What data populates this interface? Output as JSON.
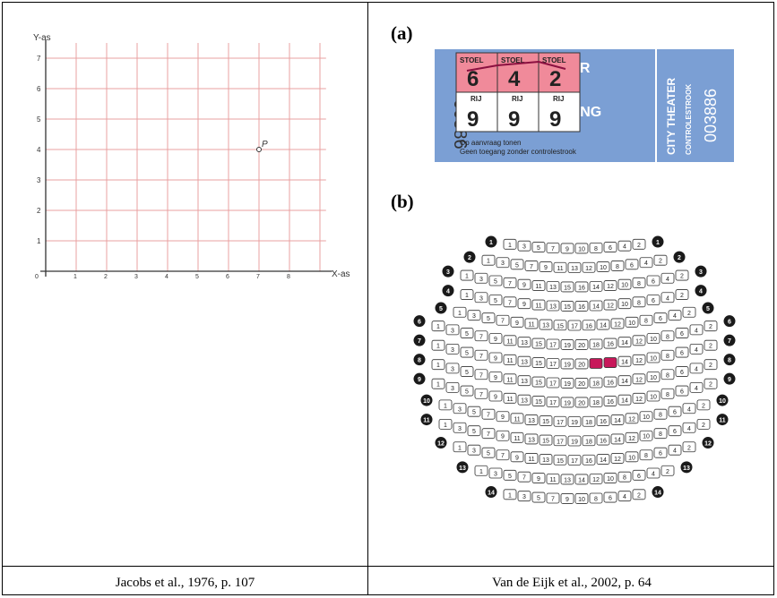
{
  "left": {
    "y_axis_label": "Y-as",
    "x_axis_label": "X-as",
    "point_label": "P",
    "y_ticks": [
      "1",
      "2",
      "3",
      "4",
      "5",
      "6",
      "7"
    ],
    "x_ticks": [
      "0",
      "1",
      "2",
      "3",
      "4",
      "5",
      "6",
      "7",
      "8"
    ],
    "point": {
      "x": 7,
      "y": 4
    },
    "grid_color": "#e8a0a0",
    "caption": "Jacobs et al., 1976, p. 107"
  },
  "panel_a": {
    "label": "(a)",
    "ticket": {
      "stoel_label": "STOEL",
      "rij_label": "RIJ",
      "seats": [
        "6",
        "4",
        "2"
      ],
      "rows": [
        "9",
        "9",
        "9"
      ],
      "title_fragment": "IEATER",
      "entrance_fragment": "DEGANG",
      "serial_left": "00886",
      "note_1": "Op aanvraag tonen",
      "note_2": "Geen toegang zonder controlestrook",
      "stub_name": "CITY THEATER",
      "stub_sub": "CONTROLESTROOK",
      "stub_serial": "003886",
      "color_blue": "#7b9fd4",
      "color_pink": "#f08a9a"
    }
  },
  "panel_b": {
    "label": "(b)",
    "caption": "Van de Eijk et al., 2002, p. 64",
    "highlight_color": "#c8175a",
    "rows": [
      {
        "num": "1",
        "left": [
          "1",
          "3",
          "5",
          "7",
          "9",
          "10"
        ],
        "right": [
          "8",
          "6",
          "4",
          "2"
        ]
      },
      {
        "num": "2",
        "left": [
          "1",
          "3",
          "5",
          "7",
          "9",
          "11",
          "13"
        ],
        "right": [
          "12",
          "10",
          "8",
          "6",
          "4",
          "2"
        ]
      },
      {
        "num": "3",
        "left": [
          "1",
          "3",
          "5",
          "7",
          "9",
          "11",
          "13",
          "15"
        ],
        "right": [
          "16",
          "14",
          "12",
          "10",
          "8",
          "6",
          "4",
          "2"
        ]
      },
      {
        "num": "4",
        "left": [
          "1",
          "3",
          "5",
          "7",
          "9",
          "11",
          "13",
          "15"
        ],
        "right": [
          "16",
          "14",
          "12",
          "10",
          "8",
          "6",
          "4",
          "2"
        ]
      },
      {
        "num": "5",
        "left": [
          "1",
          "3",
          "5",
          "7",
          "9",
          "11",
          "13",
          "15",
          "17"
        ],
        "right": [
          "16",
          "14",
          "12",
          "10",
          "8",
          "6",
          "4",
          "2"
        ]
      },
      {
        "num": "6",
        "left": [
          "1",
          "3",
          "5",
          "7",
          "9",
          "11",
          "13",
          "15",
          "17",
          "19",
          "20"
        ],
        "right": [
          "18",
          "16",
          "14",
          "12",
          "10",
          "8",
          "6",
          "4",
          "2"
        ]
      },
      {
        "num": "7",
        "left": [
          "1",
          "3",
          "5",
          "7",
          "9",
          "11",
          "13",
          "15",
          "17",
          "19",
          "20"
        ],
        "right": [
          "18",
          "16",
          "14",
          "12",
          "10",
          "8",
          "6",
          "4",
          "2"
        ],
        "highlight": [
          "18",
          "16"
        ]
      },
      {
        "num": "8",
        "left": [
          "1",
          "3",
          "5",
          "7",
          "9",
          "11",
          "13",
          "15",
          "17",
          "19",
          "20"
        ],
        "right": [
          "18",
          "16",
          "14",
          "12",
          "10",
          "8",
          "6",
          "4",
          "2"
        ]
      },
      {
        "num": "9",
        "left": [
          "1",
          "3",
          "5",
          "7",
          "9",
          "11",
          "13",
          "15",
          "17",
          "19",
          "20"
        ],
        "right": [
          "18",
          "16",
          "14",
          "12",
          "10",
          "8",
          "6",
          "4",
          "2"
        ]
      },
      {
        "num": "10",
        "left": [
          "1",
          "3",
          "5",
          "7",
          "9",
          "11",
          "13",
          "15",
          "17",
          "19"
        ],
        "right": [
          "18",
          "16",
          "14",
          "12",
          "10",
          "8",
          "6",
          "4",
          "2"
        ]
      },
      {
        "num": "11",
        "left": [
          "1",
          "3",
          "5",
          "7",
          "9",
          "11",
          "13",
          "15",
          "17",
          "19"
        ],
        "right": [
          "18",
          "16",
          "14",
          "12",
          "10",
          "8",
          "6",
          "4",
          "2"
        ]
      },
      {
        "num": "12",
        "left": [
          "1",
          "3",
          "5",
          "7",
          "9",
          "11",
          "13",
          "15",
          "17"
        ],
        "right": [
          "16",
          "14",
          "12",
          "10",
          "8",
          "6",
          "4",
          "2"
        ]
      },
      {
        "num": "13",
        "left": [
          "1",
          "3",
          "5",
          "7",
          "9",
          "11",
          "13",
          "14"
        ],
        "right": [
          "12",
          "10",
          "8",
          "6",
          "4",
          "2"
        ]
      },
      {
        "num": "14",
        "left": [
          "1",
          "3",
          "5",
          "7",
          "9",
          "10"
        ],
        "right": [
          "8",
          "6",
          "4",
          "2"
        ]
      }
    ]
  }
}
